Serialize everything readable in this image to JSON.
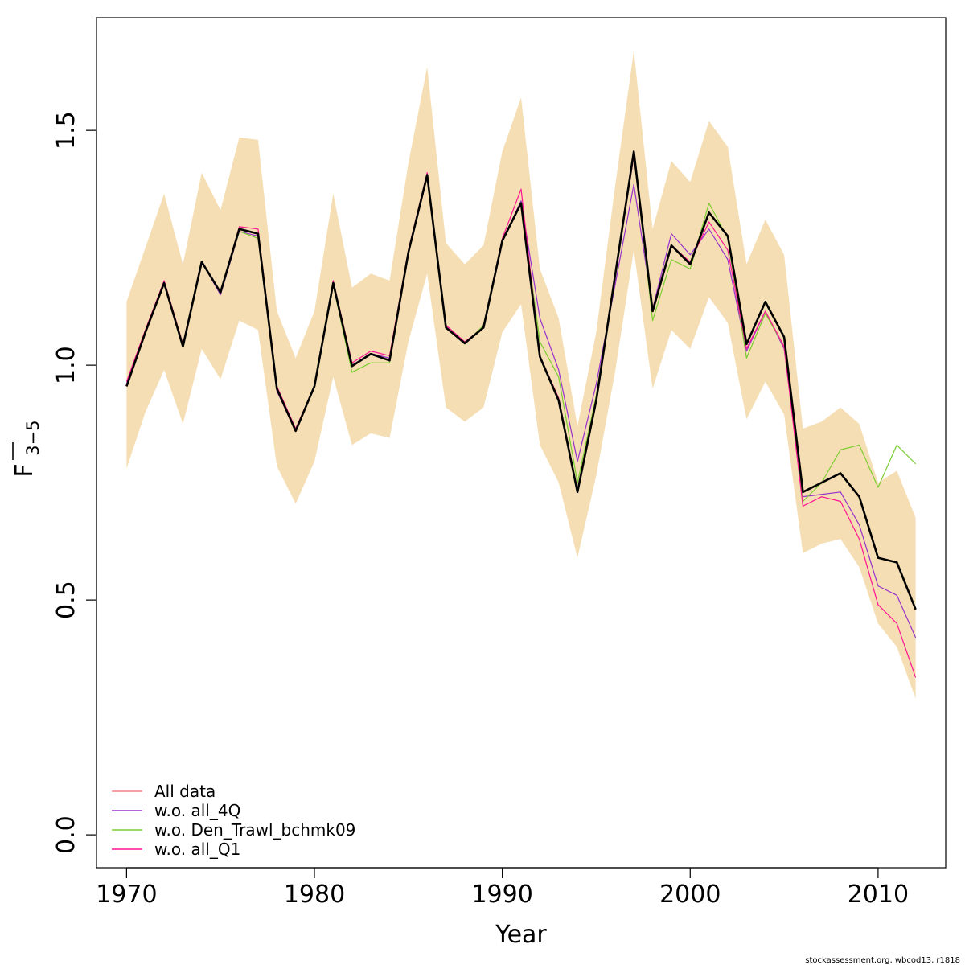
{
  "chart_data": {
    "type": "line",
    "xlabel": "Year",
    "ylabel": "F",
    "ylabel_sub": "3−5",
    "xlim": [
      1968.4,
      2013.6
    ],
    "ylim": [
      -0.07,
      1.74
    ],
    "x_ticks": [
      1970,
      1980,
      1990,
      2000,
      2010
    ],
    "x_tick_labels": [
      "1970",
      "1980",
      "1990",
      "2000",
      "2010"
    ],
    "y_ticks": [
      0.0,
      0.5,
      1.0,
      1.5
    ],
    "y_tick_labels": [
      "0.0",
      "0.5",
      "1.0",
      "1.5"
    ],
    "grid": false,
    "legend_position": "bottom-left",
    "band_color": "#F5DEB3",
    "x": [
      1970,
      1971,
      1972,
      1973,
      1974,
      1975,
      1976,
      1977,
      1978,
      1979,
      1980,
      1981,
      1982,
      1983,
      1984,
      1985,
      1986,
      1987,
      1988,
      1989,
      1990,
      1991,
      1992,
      1993,
      1994,
      1995,
      1996,
      1997,
      1998,
      1999,
      2000,
      2001,
      2002,
      2003,
      2004,
      2005,
      2006,
      2007,
      2008,
      2009,
      2010,
      2011,
      2012
    ],
    "band_upper": [
      1.135,
      1.25,
      1.365,
      1.215,
      1.41,
      1.33,
      1.485,
      1.48,
      1.115,
      1.015,
      1.115,
      1.365,
      1.165,
      1.195,
      1.18,
      1.43,
      1.635,
      1.26,
      1.215,
      1.255,
      1.455,
      1.57,
      1.205,
      1.1,
      0.87,
      1.07,
      1.38,
      1.67,
      1.29,
      1.435,
      1.39,
      1.52,
      1.465,
      1.215,
      1.31,
      1.235,
      0.865,
      0.88,
      0.91,
      0.875,
      0.75,
      0.775,
      0.675
    ],
    "band_lower": [
      0.78,
      0.9,
      0.99,
      0.875,
      1.035,
      0.97,
      1.095,
      1.075,
      0.785,
      0.705,
      0.795,
      0.975,
      0.83,
      0.855,
      0.845,
      1.05,
      1.195,
      0.91,
      0.88,
      0.91,
      1.07,
      1.13,
      0.83,
      0.75,
      0.59,
      0.765,
      0.985,
      1.245,
      0.95,
      1.075,
      1.035,
      1.145,
      1.09,
      0.885,
      0.965,
      0.895,
      0.6,
      0.62,
      0.63,
      0.57,
      0.45,
      0.4,
      0.29
    ],
    "series": [
      {
        "name": "All data",
        "color": "#F08080",
        "width": 1.2,
        "values": [
          0.955,
          1.07,
          1.175,
          1.04,
          1.22,
          1.155,
          1.29,
          1.28,
          0.95,
          0.86,
          0.955,
          1.175,
          0.998,
          1.024,
          1.01,
          1.24,
          1.405,
          1.08,
          1.047,
          1.08,
          1.265,
          1.345,
          1.018,
          0.925,
          0.73,
          0.925,
          1.19,
          1.455,
          1.115,
          1.255,
          1.215,
          1.325,
          1.275,
          1.045,
          1.135,
          1.06,
          0.73,
          0.75,
          0.77,
          0.72,
          0.59,
          0.58,
          0.48
        ]
      },
      {
        "name": "w.o. all_4Q",
        "color": "#9932CC",
        "width": 1.2,
        "values": [
          0.96,
          1.07,
          1.175,
          1.04,
          1.22,
          1.15,
          1.285,
          1.275,
          0.945,
          0.86,
          0.955,
          1.17,
          1.0,
          1.025,
          1.015,
          1.24,
          1.4,
          1.08,
          1.045,
          1.08,
          1.265,
          1.35,
          1.1,
          0.99,
          0.795,
          0.96,
          1.17,
          1.385,
          1.12,
          1.28,
          1.235,
          1.29,
          1.225,
          1.03,
          1.115,
          1.035,
          0.72,
          0.725,
          0.73,
          0.66,
          0.53,
          0.51,
          0.42
        ]
      },
      {
        "name": "w.o. Den_Trawl_bchmk09",
        "color": "#7CCD32",
        "width": 1.2,
        "values": [
          0.955,
          1.07,
          1.175,
          1.04,
          1.22,
          1.155,
          1.285,
          1.27,
          0.95,
          0.86,
          0.955,
          1.17,
          0.985,
          1.005,
          1.005,
          1.24,
          1.405,
          1.08,
          1.045,
          1.085,
          1.265,
          1.345,
          1.05,
          0.975,
          0.75,
          0.935,
          1.19,
          1.455,
          1.095,
          1.225,
          1.205,
          1.345,
          1.27,
          1.015,
          1.11,
          1.04,
          0.71,
          0.75,
          0.82,
          0.83,
          0.74,
          0.83,
          0.79
        ]
      },
      {
        "name": "w.o. all_Q1",
        "color": "#FF1493",
        "width": 1.2,
        "values": [
          0.965,
          1.075,
          1.18,
          1.045,
          1.22,
          1.155,
          1.295,
          1.29,
          0.955,
          0.865,
          0.955,
          1.18,
          1.005,
          1.03,
          1.02,
          1.245,
          1.41,
          1.085,
          1.05,
          1.08,
          1.27,
          1.375,
          1.02,
          0.93,
          0.735,
          0.93,
          1.19,
          1.445,
          1.12,
          1.255,
          1.22,
          1.305,
          1.245,
          1.035,
          1.115,
          1.04,
          0.7,
          0.72,
          0.71,
          0.63,
          0.49,
          0.45,
          0.335
        ]
      }
    ],
    "main_series": {
      "name": "All data",
      "color": "#000000",
      "width": 2.6
    }
  },
  "credit": "stockassessment.org, wbcod13, r1818"
}
